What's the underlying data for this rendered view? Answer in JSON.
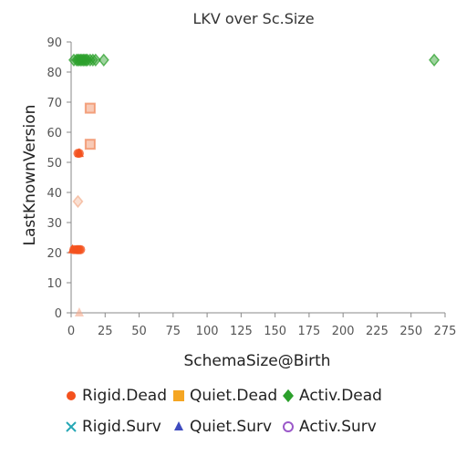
{
  "chart_data": {
    "type": "scatter",
    "title": "LKV over Sc.Size",
    "xlabel": "SchemaSize@Birth",
    "ylabel": "LastKnownVersion",
    "xlim": [
      0,
      275
    ],
    "ylim": [
      0,
      90
    ],
    "x_ticks": [
      0,
      25,
      50,
      75,
      100,
      125,
      150,
      175,
      200,
      225,
      250,
      275
    ],
    "y_ticks": [
      0,
      10,
      20,
      30,
      40,
      50,
      60,
      70,
      80,
      90
    ],
    "grid": false,
    "legend_position": "bottom",
    "series": [
      {
        "name": "Rigid.Dead",
        "marker": "circle",
        "color": "#f4511e",
        "points": [
          [
            2,
            21
          ],
          [
            4,
            21
          ],
          [
            5,
            21
          ],
          [
            6,
            21
          ],
          [
            7,
            21
          ],
          [
            5,
            53
          ],
          [
            6,
            53
          ]
        ]
      },
      {
        "name": "Quiet.Dead",
        "marker": "square",
        "color": "#f5a623",
        "points": [
          [
            14,
            68
          ],
          [
            14,
            56
          ]
        ]
      },
      {
        "name": "Activ.Dead",
        "marker": "diamond",
        "color": "#2ca02c",
        "points": [
          [
            5,
            37
          ],
          [
            2,
            84
          ],
          [
            4,
            84
          ],
          [
            5,
            84
          ],
          [
            6,
            84
          ],
          [
            7,
            84
          ],
          [
            8,
            84
          ],
          [
            9,
            84
          ],
          [
            10,
            84
          ],
          [
            11,
            84
          ],
          [
            12,
            84
          ],
          [
            14,
            84
          ],
          [
            16,
            84
          ],
          [
            18,
            84
          ],
          [
            24,
            84
          ],
          [
            267,
            84
          ]
        ]
      },
      {
        "name": "Rigid.Surv",
        "marker": "cross",
        "color": "#26a7b5",
        "points": []
      },
      {
        "name": "Quiet.Surv",
        "marker": "triangle",
        "color": "#3f4bbf",
        "points": [
          [
            1,
            21
          ],
          [
            6,
            0
          ],
          [
            6,
            53
          ]
        ]
      },
      {
        "name": "Activ.Surv",
        "marker": "ring",
        "color": "#9b59c9",
        "points": []
      }
    ]
  }
}
